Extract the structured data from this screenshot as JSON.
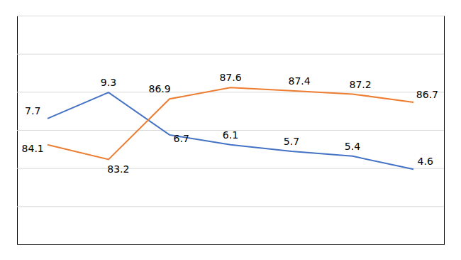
{
  "chart_data": {
    "type": "line",
    "x": [
      1,
      2,
      3,
      4,
      5,
      6,
      7
    ],
    "series": [
      {
        "color": "#4472C4",
        "values": [
          7.7,
          9.3,
          6.7,
          6.1,
          5.7,
          5.4,
          4.6
        ]
      },
      {
        "color": "#ED7D31",
        "values": [
          84.1,
          83.2,
          86.9,
          87.6,
          87.4,
          87.2,
          86.7
        ],
        "axis": "y2"
      }
    ],
    "xlim": [
      0.5,
      7.5
    ],
    "ylim": [
      0,
      14
    ],
    "yticks": [
      0,
      2.3333333333333335,
      4.666666666666667,
      7,
      9.333333333333334,
      11.666666666666668,
      14
    ],
    "y2lim": [
      78,
      92
    ],
    "grid": true,
    "data_labels": true,
    "tick_labels": false
  }
}
